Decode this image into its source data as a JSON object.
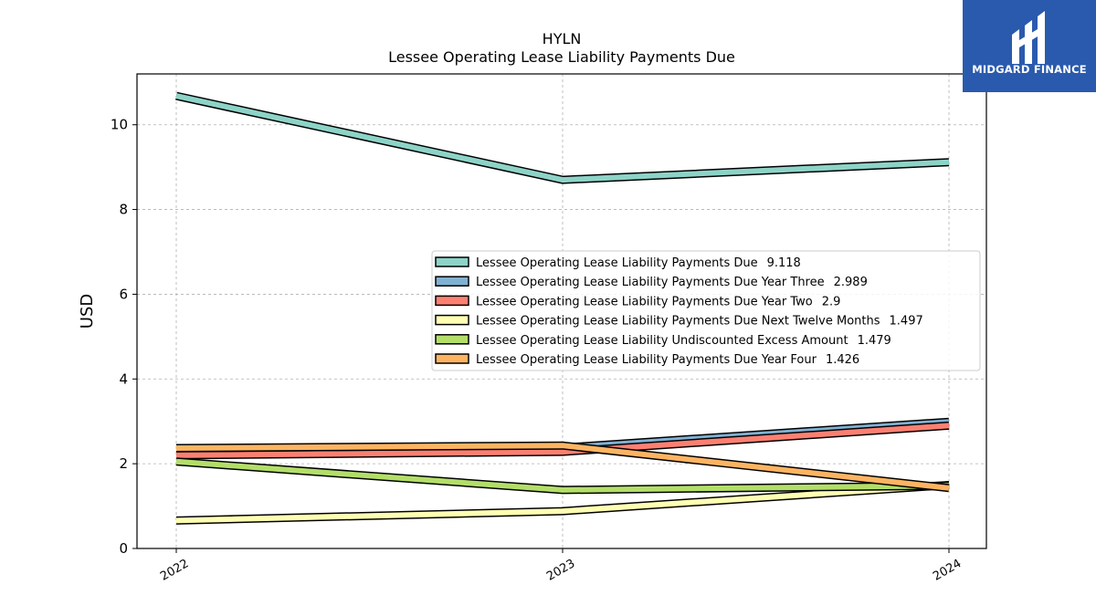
{
  "chart_data": {
    "type": "line",
    "title": "HYLN",
    "subtitle": "Lessee Operating Lease Liability Payments Due",
    "xlabel": "",
    "ylabel": "USD",
    "x": [
      "2022",
      "2023",
      "2024"
    ],
    "ylim": [
      0,
      11.2
    ],
    "yticks": [
      "0",
      "2",
      "4",
      "6",
      "8",
      "10"
    ],
    "grid": true,
    "legend_position": "center-right",
    "series": [
      {
        "name": "Lessee Operating Lease Liability Payments Due",
        "legend_value": "9.118",
        "color": "#8dd3c7",
        "values": [
          10.68,
          8.7,
          9.118
        ]
      },
      {
        "name": "Lessee Operating Lease Liability Payments Due Year Three",
        "legend_value": "2.989",
        "color": "#80b1d3",
        "values": [
          2.2,
          2.38,
          2.989
        ]
      },
      {
        "name": "Lessee Operating Lease Liability Payments Due Year Two",
        "legend_value": "2.9",
        "color": "#fb8072",
        "values": [
          2.2,
          2.28,
          2.9
        ]
      },
      {
        "name": "Lessee Operating Lease Liability Payments Due Next Twelve Months",
        "legend_value": "1.497",
        "color": "#ffffb3",
        "values": [
          0.66,
          0.88,
          1.497
        ]
      },
      {
        "name": "Lessee Operating Lease Liability Undiscounted Excess Amount",
        "legend_value": "1.479",
        "color": "#b3de69",
        "values": [
          2.05,
          1.38,
          1.479
        ]
      },
      {
        "name": "Lessee Operating Lease Liability Payments Due Year Four",
        "legend_value": "1.426",
        "color": "#fdb462",
        "values": [
          2.37,
          2.43,
          1.426
        ]
      }
    ]
  },
  "logo": {
    "text": "MIDGARD FINANCE",
    "bg_color": "#2a5aad"
  }
}
